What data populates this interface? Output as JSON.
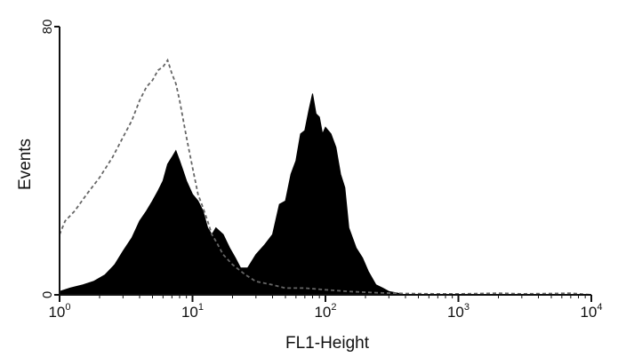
{
  "chart_data": {
    "type": "area",
    "title": "",
    "xlabel": "FL1-Height",
    "ylabel": "Events",
    "x_scale": "log",
    "xlim": [
      1,
      10000
    ],
    "ylim": [
      0,
      80
    ],
    "grid": false,
    "legend": "none",
    "x_ticks": [
      {
        "value": 1,
        "base": "10",
        "exp": "0"
      },
      {
        "value": 10,
        "base": "10",
        "exp": "1"
      },
      {
        "value": 100,
        "base": "10",
        "exp": "2"
      },
      {
        "value": 1000,
        "base": "10",
        "exp": "3"
      },
      {
        "value": 10000,
        "base": "10",
        "exp": "4"
      }
    ],
    "y_ticks": [
      {
        "value": 0,
        "label": "0"
      },
      {
        "value": 80,
        "label": "80"
      }
    ],
    "series": [
      {
        "style": "filled",
        "color": "#000000",
        "x": [
          1.0,
          1.2,
          1.5,
          1.8,
          2.2,
          2.6,
          3.0,
          3.5,
          4.0,
          4.5,
          5.0,
          5.5,
          6.0,
          6.5,
          7.0,
          7.5,
          8.0,
          8.5,
          9.0,
          10.0,
          11.0,
          12.0,
          13.0,
          14.0,
          15.0,
          17.0,
          19.0,
          21.0,
          23.0,
          26.0,
          30.0,
          35.0,
          40.0,
          45.0,
          50.0,
          55.0,
          60.0,
          65.0,
          70.0,
          75.0,
          80.0,
          85.0,
          90.0,
          95.0,
          100.0,
          110.0,
          120.0,
          130.0,
          140.0,
          150.0,
          170.0,
          190.0,
          210.0,
          240.0,
          270.0,
          300.0,
          350.0,
          400.0
        ],
        "values": [
          1,
          2,
          3,
          4,
          6,
          9,
          13,
          17,
          22,
          25,
          28,
          31,
          34,
          39,
          41,
          43,
          40,
          37,
          34,
          30,
          28,
          25,
          20,
          18,
          20,
          18,
          14,
          11,
          8,
          8,
          12,
          15,
          18,
          27,
          28,
          36,
          40,
          48,
          49,
          55,
          60,
          54,
          53,
          48,
          50,
          48,
          44,
          36,
          32,
          20,
          14,
          11,
          7,
          3,
          2,
          1,
          0.5,
          0
        ]
      },
      {
        "style": "dashed",
        "color": "#666666",
        "x": [
          1.0,
          1.1,
          1.3,
          1.6,
          2.0,
          2.5,
          3.0,
          3.5,
          4.0,
          4.5,
          5.0,
          5.5,
          6.0,
          6.5,
          7.0,
          7.5,
          8.0,
          9.0,
          10.0,
          11.0,
          12.0,
          13.0,
          14.0,
          15.0,
          17.0,
          20.0,
          25.0,
          30.0,
          40.0,
          50.0,
          70.0,
          100.0,
          150.0,
          250.0,
          400.0,
          700.0,
          1000.0,
          2000.0,
          3000.0,
          5000.0,
          7000.0,
          10000.0
        ],
        "values": [
          18,
          22,
          25,
          30,
          35,
          41,
          47,
          52,
          58,
          62,
          64,
          67,
          68,
          70,
          66,
          63,
          58,
          47,
          38,
          30,
          26,
          22,
          18,
          16,
          12,
          9,
          6,
          4,
          3,
          2,
          2,
          1.5,
          1,
          0.6,
          0.4,
          0.3,
          0.3,
          0.5,
          0.3,
          0.4,
          0.5,
          0
        ]
      }
    ]
  }
}
